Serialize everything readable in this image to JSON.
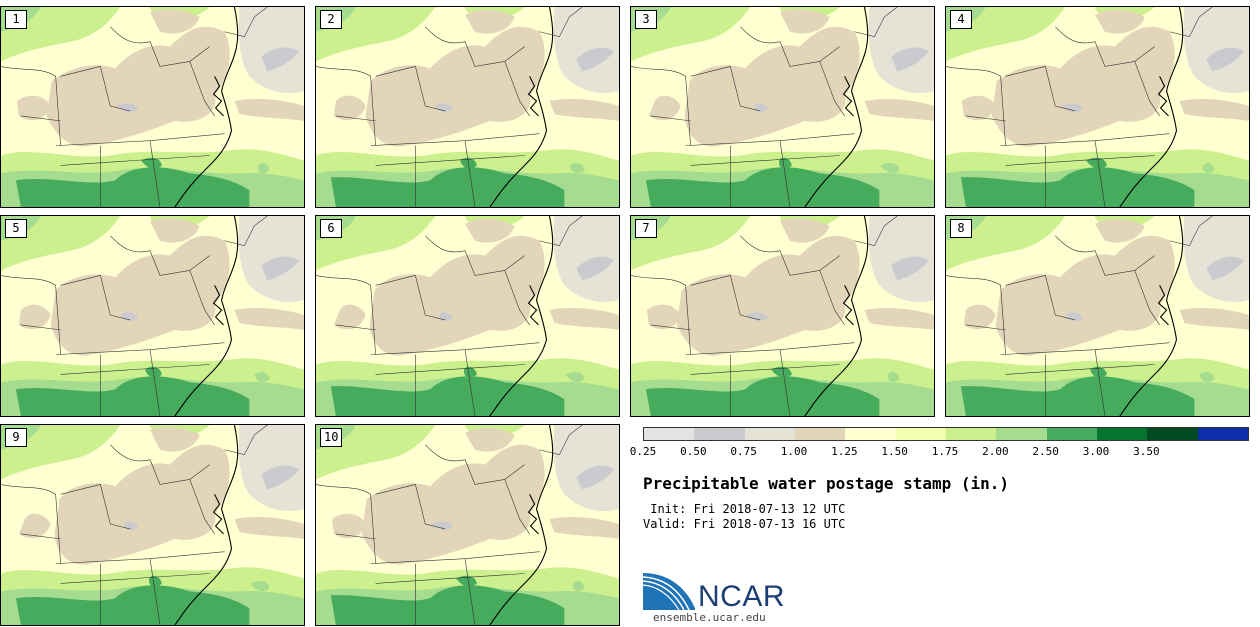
{
  "panels": [
    {
      "label": "1"
    },
    {
      "label": "2"
    },
    {
      "label": "3"
    },
    {
      "label": "4"
    },
    {
      "label": "5"
    },
    {
      "label": "6"
    },
    {
      "label": "7"
    },
    {
      "label": "8"
    },
    {
      "label": "9"
    },
    {
      "label": "10"
    }
  ],
  "legend": {
    "colors": [
      "#e3e3e3",
      "#cbcbcf",
      "#e5e2d6",
      "#e2d5b9",
      "#ffffd2",
      "#f2ffb3",
      "#ccf08e",
      "#a6dc8f",
      "#47ab5d",
      "#05742e",
      "#004b1f",
      "#0c2fa9"
    ],
    "ticks": [
      "0.25",
      "0.50",
      "0.75",
      "1.00",
      "1.25",
      "1.50",
      "1.75",
      "2.00",
      "2.50",
      "3.00",
      "3.50"
    ]
  },
  "title": "Precipitable water postage stamp (in.)",
  "init_line": " Init: Fri 2018-07-13 12 UTC",
  "valid_line": "Valid: Fri 2018-07-13 16 UTC",
  "logo": {
    "text": "NCAR",
    "url": "ensemble.ucar.edu"
  }
}
